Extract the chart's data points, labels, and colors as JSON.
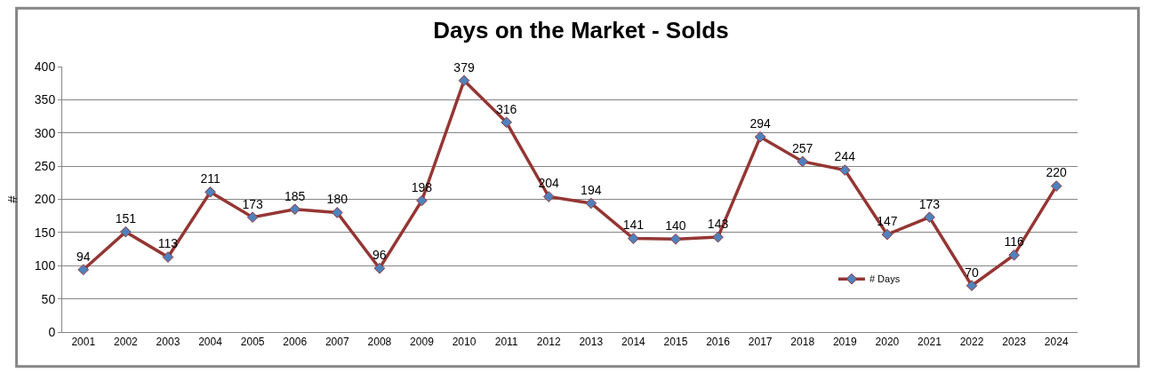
{
  "chart_data": {
    "type": "line",
    "title": "Days on the Market - Solds",
    "ylabel": "#",
    "categories": [
      "2001",
      "2002",
      "2003",
      "2004",
      "2005",
      "2006",
      "2007",
      "2008",
      "2009",
      "2010",
      "2011",
      "2012",
      "2013",
      "2014",
      "2015",
      "2016",
      "2017",
      "2018",
      "2019",
      "2020",
      "2021",
      "2022",
      "2023",
      "2024"
    ],
    "series": [
      {
        "name": "# Days",
        "color": "#943634",
        "values": [
          94,
          151,
          113,
          211,
          173,
          185,
          180,
          96,
          198,
          379,
          316,
          204,
          194,
          141,
          140,
          143,
          294,
          257,
          244,
          147,
          173,
          70,
          116,
          220
        ]
      }
    ],
    "ylim": [
      0,
      400
    ],
    "yticks": [
      0,
      50,
      100,
      150,
      200,
      250,
      300,
      350,
      400
    ],
    "grid": "y",
    "legend": "bottom right",
    "marker": "diamond",
    "line_style": "solid",
    "data_labels": true
  }
}
